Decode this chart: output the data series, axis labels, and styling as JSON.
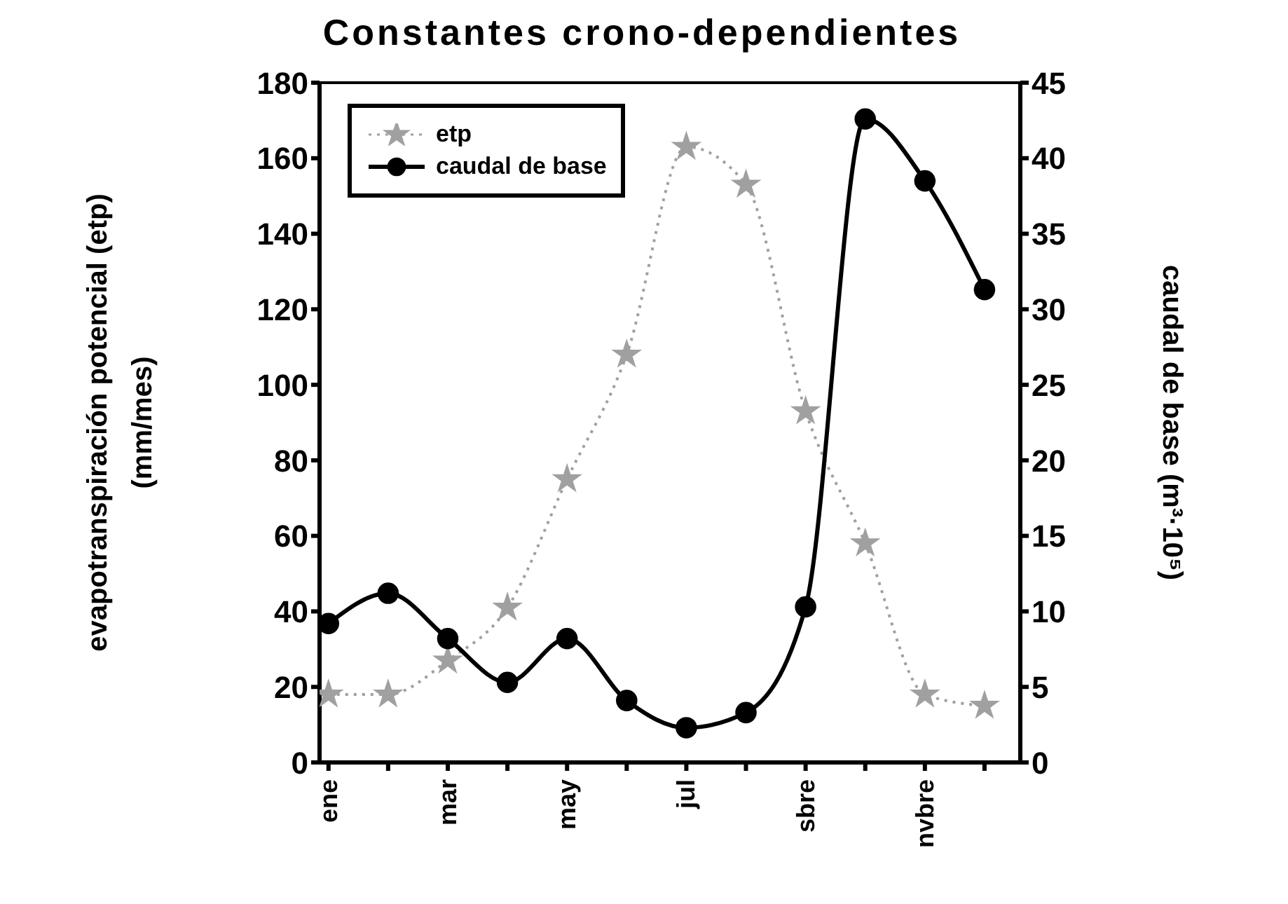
{
  "chart_data": {
    "type": "line",
    "title": "Constantes crono-dependientes",
    "ylabel": "evapotranspiración potencial (etp)\n(mm/mes)",
    "y2label": "caudal de base (m³·10⁵)",
    "categories": [
      "ene",
      null,
      "mar",
      null,
      "may",
      null,
      "jul",
      null,
      "sbre",
      null,
      "nvbre",
      null
    ],
    "series": [
      {
        "name": "etp",
        "color": "#a0a0a0",
        "marker": "star",
        "line_style": "dotted",
        "values": [
          18,
          18,
          27,
          41,
          75,
          108,
          163,
          153,
          93,
          58,
          18,
          15
        ]
      },
      {
        "name": "caudal de base",
        "color": "#000000",
        "marker": "circle",
        "line_style": "solid",
        "axis": "y2",
        "values": [
          9.2,
          11.2,
          8.2,
          5.3,
          8.2,
          4.1,
          2.3,
          3.3,
          10.3,
          42.6,
          38.5,
          31.3
        ]
      }
    ],
    "ylim": [
      0,
      180
    ],
    "yticks": [
      0,
      20,
      40,
      60,
      80,
      100,
      120,
      140,
      160,
      180
    ],
    "y2lim": [
      0,
      45
    ],
    "y2ticks": [
      0,
      5,
      10,
      15,
      20,
      25,
      30,
      35,
      40,
      45
    ],
    "grid": false,
    "legend": "top left"
  }
}
